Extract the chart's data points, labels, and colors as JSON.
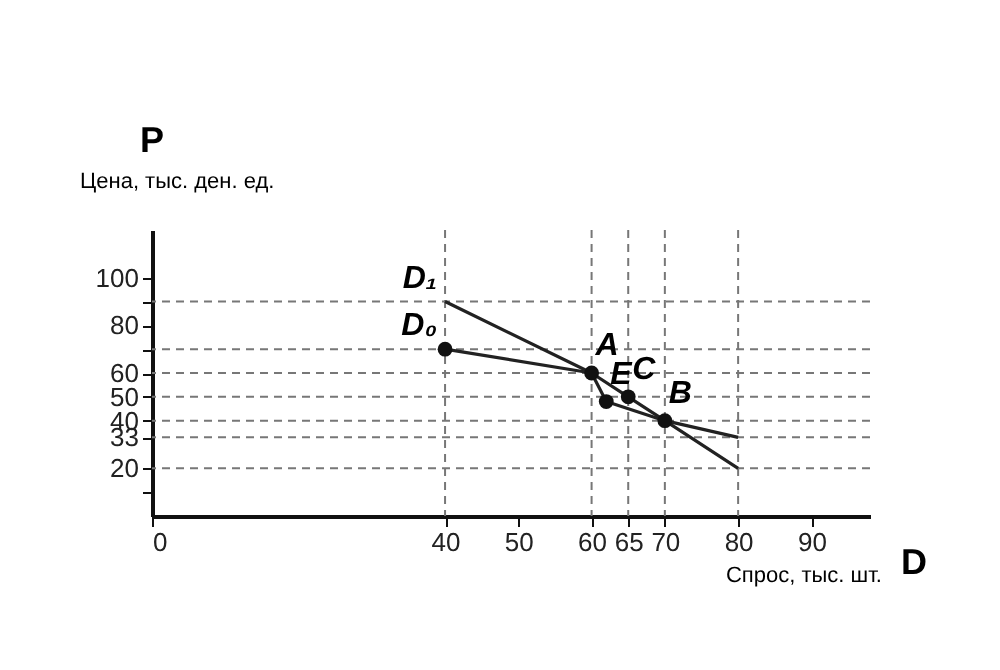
{
  "chart_data": {
    "type": "line",
    "xlabel": "Спрос, тыс. шт.",
    "ylabel": "Цена, тыс. ден. ед.",
    "annotations": [
      "P",
      "D",
      {
        "text": "A",
        "x": 60,
        "y": 60
      },
      {
        "text": "E",
        "x": 62,
        "y": 48
      },
      {
        "text": "C",
        "x": 65,
        "y": 50
      },
      {
        "text": "B",
        "x": 70,
        "y": 40
      }
    ],
    "series": [
      {
        "name": "D₁",
        "color": "#222222",
        "x": [
          40,
          60,
          62,
          70,
          80
        ],
        "values": [
          90,
          60,
          48,
          40,
          33
        ]
      },
      {
        "name": "D₀",
        "color": "#222222",
        "x": [
          40,
          60,
          65,
          70,
          80
        ],
        "values": [
          70,
          60,
          50,
          40,
          20
        ]
      },
      {
        "type": "scatter",
        "color": "#111111",
        "marker": "circle",
        "x": [
          40,
          60,
          62,
          65,
          70
        ],
        "values": [
          70,
          60,
          48,
          50,
          40
        ]
      }
    ],
    "xlim": [
      0,
      98
    ],
    "xticks": [
      0,
      40,
      50,
      60,
      65,
      70,
      80,
      90
    ],
    "ylim": [
      0,
      120
    ],
    "yticks": [
      {
        "value": 10,
        "label": null
      },
      20,
      33,
      40,
      50,
      60,
      {
        "value": 70,
        "label": null
      },
      80,
      {
        "value": 90,
        "label": null
      },
      100
    ],
    "ref_lines": [
      {
        "axis": "y",
        "value": 90,
        "line_style": "dashed",
        "color": "#777777"
      },
      {
        "axis": "y",
        "value": 70,
        "line_style": "dashed",
        "color": "#777777"
      },
      {
        "axis": "y",
        "value": 60,
        "line_style": "dashed",
        "color": "#777777"
      },
      {
        "axis": "y",
        "value": 50,
        "line_style": "dashed",
        "color": "#777777"
      },
      {
        "axis": "y",
        "value": 40,
        "line_style": "dashed",
        "color": "#777777"
      },
      {
        "axis": "y",
        "value": 33,
        "line_style": "dashed",
        "color": "#777777"
      },
      {
        "axis": "y",
        "value": 20,
        "line_style": "dashed",
        "color": "#777777"
      },
      {
        "axis": "x",
        "value": 40,
        "line_style": "dashed",
        "color": "#777777"
      },
      {
        "axis": "x",
        "value": 60,
        "line_style": "dashed",
        "color": "#777777"
      },
      {
        "axis": "x",
        "value": 65,
        "line_style": "dashed",
        "color": "#777777"
      },
      {
        "axis": "x",
        "value": 70,
        "line_style": "dashed",
        "color": "#777777"
      },
      {
        "axis": "x",
        "value": 80,
        "line_style": "dashed",
        "color": "#777777"
      }
    ],
    "grid": false,
    "legend": false,
    "marker": "none",
    "line_style": "solid"
  }
}
